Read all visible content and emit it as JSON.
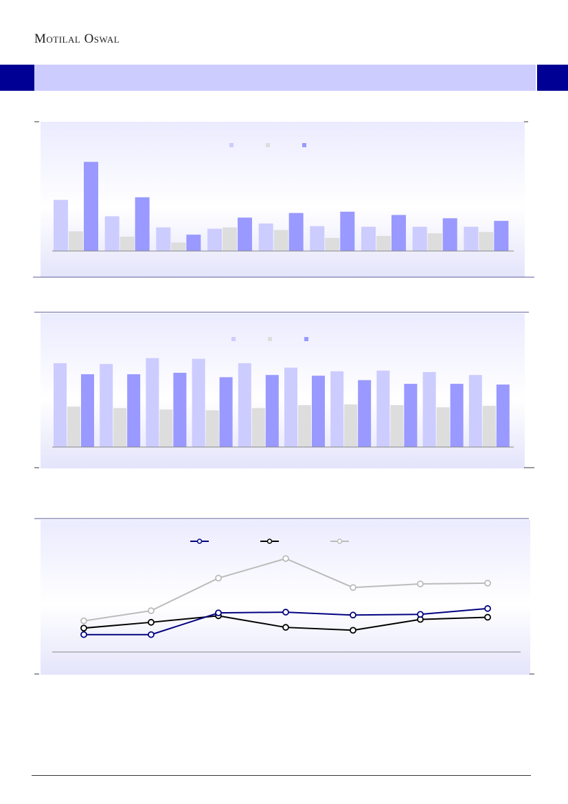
{
  "header": {
    "brand": "Motilal Oswal",
    "section_title": "",
    "colors": {
      "band_dark": "#000094",
      "band_light": "#ccccff"
    }
  },
  "chart_data": [
    {
      "type": "bar",
      "title": "",
      "legend_position": "top",
      "categories": [
        "",
        "",
        "",
        "",
        "",
        "",
        "",
        "",
        ""
      ],
      "series": [
        {
          "color": "#ccccff",
          "values": [
            78,
            53,
            36,
            34,
            42,
            38,
            37,
            37,
            37
          ]
        },
        {
          "color": "#dddddd",
          "values": [
            30,
            22,
            13,
            36,
            32,
            20,
            23,
            27,
            29
          ]
        },
        {
          "color": "#9999ff",
          "values": [
            136,
            82,
            25,
            51,
            58,
            60,
            55,
            50,
            46
          ]
        }
      ],
      "ylim": [
        0,
        150
      ],
      "grid": false
    },
    {
      "type": "bar",
      "title": "",
      "legend_position": "top",
      "categories": [
        "",
        "",
        "",
        "",
        "",
        "",
        "",
        "",
        "",
        ""
      ],
      "series": [
        {
          "color": "#ccccff",
          "values": [
            114,
            113,
            121,
            120,
            114,
            108,
            103,
            104,
            102,
            98
          ]
        },
        {
          "color": "#dddddd",
          "values": [
            55,
            53,
            51,
            50,
            53,
            57,
            58,
            57,
            54,
            56
          ]
        },
        {
          "color": "#9999ff",
          "values": [
            99,
            99,
            101,
            95,
            98,
            97,
            91,
            86,
            86,
            85
          ]
        }
      ],
      "ylim": [
        0,
        130
      ],
      "grid": false
    },
    {
      "type": "line",
      "title": "",
      "legend_position": "top",
      "categories": [
        "",
        "",
        "",
        "",
        "",
        "",
        ""
      ],
      "series": [
        {
          "color": "#000080",
          "values": [
            2.4,
            2.4,
            5.4,
            5.5,
            5.1,
            5.2,
            6.0
          ]
        },
        {
          "color": "#000000",
          "values": [
            3.3,
            4.1,
            5.0,
            3.4,
            3.0,
            4.5,
            4.8
          ]
        },
        {
          "color": "#bbbbbb",
          "values": [
            4.3,
            5.7,
            10.2,
            12.9,
            8.9,
            9.4,
            9.5
          ]
        }
      ],
      "ylim": [
        0,
        15
      ],
      "grid": false
    }
  ]
}
